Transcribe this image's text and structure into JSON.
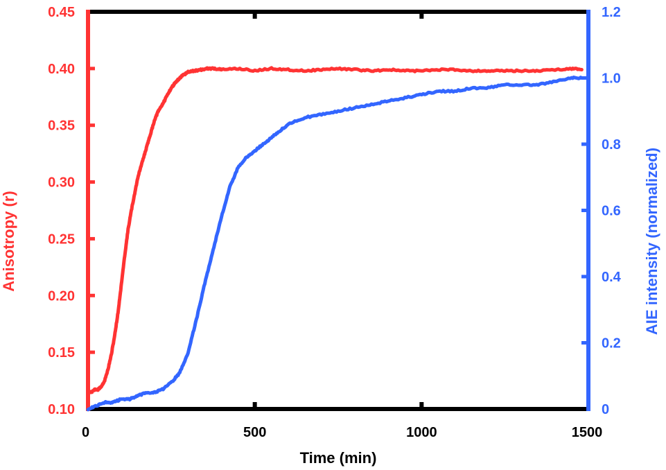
{
  "chart_data": {
    "type": "line",
    "xlabel": "Time (min)",
    "ylabel_left": "Anisotropy (r)",
    "ylabel_right": "AIE intensity (normalized)",
    "xlim": [
      0,
      1500
    ],
    "ylim_left": [
      0.1,
      0.45
    ],
    "ylim_right": [
      0,
      1.2
    ],
    "x_ticks": [
      "0",
      "500",
      "1000",
      "1500"
    ],
    "y_ticks_left": [
      "0.10",
      "0.15",
      "0.20",
      "0.25",
      "0.30",
      "0.35",
      "0.40",
      "0.45"
    ],
    "y_ticks_right": [
      "0",
      "0.2",
      "0.4",
      "0.6",
      "0.8",
      "1.0",
      "1.2"
    ],
    "grid": false,
    "colors": {
      "left": "#ff3333",
      "right": "#3366ff",
      "frame": "#000000"
    },
    "series": [
      {
        "axis": "left",
        "x": [
          0,
          10,
          20,
          30,
          40,
          50,
          60,
          70,
          80,
          90,
          100,
          110,
          120,
          130,
          140,
          150,
          160,
          170,
          180,
          190,
          200,
          210,
          220,
          230,
          240,
          250,
          260,
          270,
          280,
          290,
          300,
          320,
          340,
          360,
          380,
          400,
          450,
          500,
          550,
          600,
          650,
          700,
          750,
          800,
          850,
          900,
          950,
          1000,
          1050,
          1100,
          1150,
          1200,
          1250,
          1300,
          1350,
          1400,
          1450,
          1480
        ],
        "values": [
          0.115,
          0.115,
          0.117,
          0.117,
          0.12,
          0.125,
          0.135,
          0.148,
          0.165,
          0.185,
          0.21,
          0.235,
          0.258,
          0.275,
          0.29,
          0.305,
          0.315,
          0.325,
          0.335,
          0.345,
          0.355,
          0.362,
          0.367,
          0.372,
          0.378,
          0.383,
          0.387,
          0.39,
          0.393,
          0.395,
          0.397,
          0.398,
          0.399,
          0.4,
          0.4,
          0.399,
          0.4,
          0.398,
          0.4,
          0.399,
          0.398,
          0.399,
          0.4,
          0.399,
          0.398,
          0.399,
          0.398,
          0.398,
          0.399,
          0.399,
          0.398,
          0.398,
          0.398,
          0.398,
          0.398,
          0.399,
          0.4,
          0.399
        ]
      },
      {
        "axis": "right",
        "x": [
          0,
          25,
          50,
          75,
          100,
          125,
          150,
          175,
          200,
          225,
          250,
          275,
          300,
          325,
          350,
          375,
          400,
          425,
          450,
          475,
          500,
          525,
          550,
          575,
          600,
          650,
          700,
          750,
          800,
          850,
          900,
          950,
          1000,
          1050,
          1100,
          1150,
          1200,
          1250,
          1300,
          1350,
          1400,
          1450,
          1480
        ],
        "values": [
          0.0,
          0.01,
          0.02,
          0.02,
          0.03,
          0.03,
          0.04,
          0.05,
          0.05,
          0.06,
          0.08,
          0.11,
          0.17,
          0.27,
          0.38,
          0.48,
          0.58,
          0.67,
          0.73,
          0.76,
          0.78,
          0.8,
          0.82,
          0.84,
          0.86,
          0.88,
          0.89,
          0.9,
          0.91,
          0.92,
          0.93,
          0.94,
          0.95,
          0.96,
          0.96,
          0.97,
          0.97,
          0.98,
          0.98,
          0.98,
          0.99,
          1.0,
          1.0
        ]
      }
    ]
  }
}
